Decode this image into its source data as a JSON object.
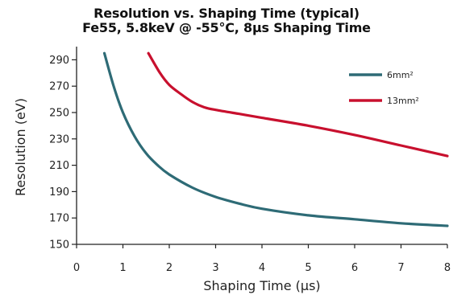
{
  "chart_data": {
    "type": "line",
    "title": "Resolution vs. Shaping Time (typical)",
    "subtitle": "Fe55, 5.8keV @ -55°C, 8µs Shaping Time",
    "xlabel": "Shaping Time (µs)",
    "ylabel": "Resolution (eV)",
    "xlim": [
      0,
      8
    ],
    "ylim": [
      150,
      300
    ],
    "xticks": [
      0,
      1,
      2,
      3,
      4,
      5,
      6,
      7,
      8
    ],
    "yticks": [
      150,
      170,
      190,
      210,
      230,
      250,
      270,
      290
    ],
    "grid": false,
    "legend_position": "top-right",
    "series": [
      {
        "name": "6mm²",
        "color": "#2e6b76",
        "x": [
          0.6,
          0.8,
          1.0,
          1.25,
          1.5,
          1.75,
          2.0,
          2.5,
          3.0,
          3.5,
          4.0,
          5.0,
          6.0,
          7.0,
          8.0
        ],
        "y": [
          295,
          270,
          250,
          232,
          219,
          210,
          203,
          193,
          186,
          181,
          177,
          172,
          169,
          166,
          164
        ]
      },
      {
        "name": "13mm²",
        "color": "#c8102e",
        "x": [
          1.55,
          1.8,
          2.0,
          2.25,
          2.5,
          2.75,
          3.0,
          3.5,
          4.0,
          5.0,
          6.0,
          7.0,
          8.0
        ],
        "y": [
          295,
          280,
          271,
          264,
          258,
          254,
          252,
          249,
          246,
          240,
          233,
          225,
          217
        ]
      }
    ]
  }
}
